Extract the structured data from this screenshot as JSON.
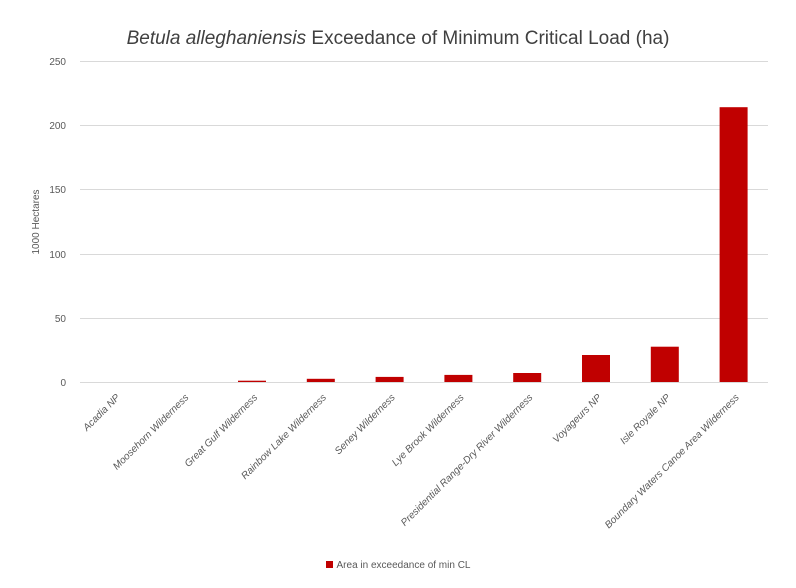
{
  "chart_data": {
    "type": "bar",
    "title_italic": "Betula alleghaniensis",
    "title_rest": " Exceedance of Minimum Critical Load (ha)",
    "xlabel": "",
    "ylabel": "1000 Hectares",
    "ylim": [
      0,
      250
    ],
    "yticks": [
      0,
      50,
      100,
      150,
      200,
      250
    ],
    "grid": true,
    "legend_position": "bottom",
    "categories": [
      "Acadia NP",
      "Moosehorn Wilderness",
      "Great Gulf Wilderness",
      "Rainbow Lake Wilderness",
      "Seney Wilderness",
      "Lye Brook Wilderness",
      "Presidential Range-Dry River Wilderness",
      "Voyageurs NP",
      "Isle Royale NP",
      "Boundary Waters Canoe Area Wilderness"
    ],
    "series": [
      {
        "name": "Area in exceedance of min CL",
        "color": "#c00000",
        "values": [
          0,
          0,
          1,
          2.5,
          4,
          5.5,
          7,
          21,
          27.5,
          214
        ]
      }
    ]
  }
}
